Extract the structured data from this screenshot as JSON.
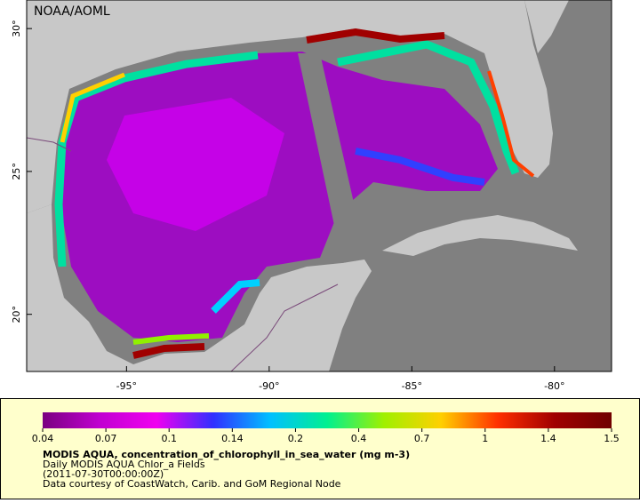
{
  "map": {
    "credit": "NOAA/AOML",
    "lon_range": [
      -98.5,
      -78
    ],
    "lat_range": [
      18,
      31
    ],
    "lon_ticks": [
      {
        "value": -95,
        "label": "-95°"
      },
      {
        "value": -90,
        "label": "-90°"
      },
      {
        "value": -85,
        "label": "-85°"
      },
      {
        "value": -80,
        "label": "-80°"
      }
    ],
    "lat_ticks": [
      {
        "value": 30,
        "label": "30°"
      },
      {
        "value": 25,
        "label": "25°"
      },
      {
        "value": 20,
        "label": "20°"
      }
    ]
  },
  "colorbar": {
    "ticks": [
      0.04,
      0.07,
      0.1,
      0.14,
      0.2,
      0.4,
      0.7,
      1,
      1.4,
      1.5
    ],
    "colors": [
      "#7a0080",
      "#c000d0",
      "#f000f0",
      "#3030ff",
      "#00c0ff",
      "#00f090",
      "#a0f000",
      "#ffd000",
      "#ff3000",
      "#a00000",
      "#700000"
    ]
  },
  "caption": {
    "title": "MODIS AQUA, concentration_of_chlorophyll_in_sea_water (mg m-3)",
    "lines": [
      "Daily MODIS AQUA Chlor_a Fields",
      "(2011-07-30T00:00:00Z)",
      "Data courtesy of CoastWatch, Carib. and GoM Regional Node"
    ]
  }
}
